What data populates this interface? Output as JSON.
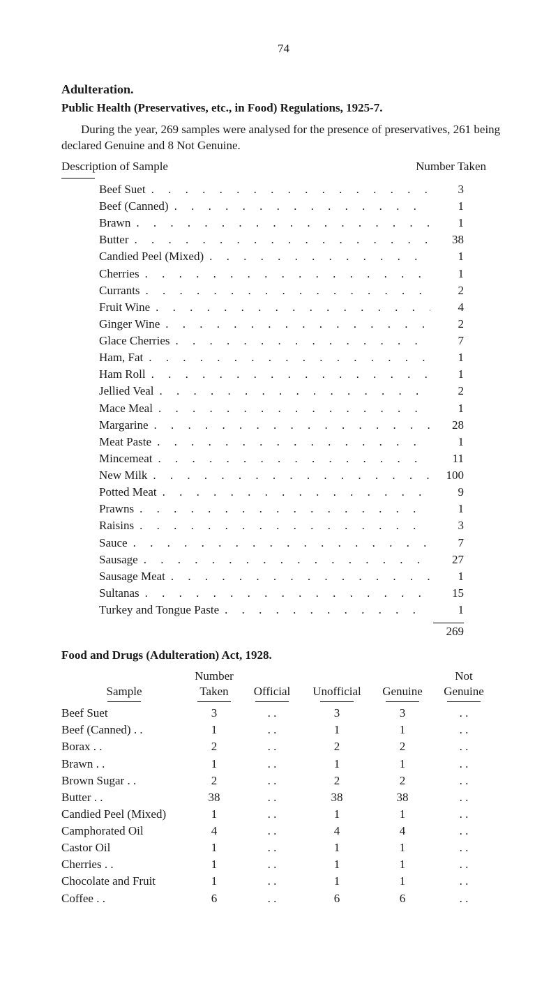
{
  "page_number": "74",
  "adulteration_heading": "Adulteration.",
  "subheading1": "Public Health (Preservatives, etc., in Food) Regulations, 1925-7.",
  "paragraph1": "During the year, 269 samples were analysed for the presence of preservatives, 261 being declared Genuine and 8 Not Genuine.",
  "desc_label": "Description of Sample",
  "desc_value_label": "Number Taken",
  "items": [
    {
      "label": "Beef Suet",
      "value": "3"
    },
    {
      "label": "Beef (Canned)",
      "value": "1"
    },
    {
      "label": "Brawn",
      "value": "1"
    },
    {
      "label": "Butter",
      "value": "38"
    },
    {
      "label": "Candied Peel (Mixed)",
      "value": "1"
    },
    {
      "label": "Cherries",
      "value": "1"
    },
    {
      "label": "Currants",
      "value": "2"
    },
    {
      "label": "Fruit Wine",
      "value": "4"
    },
    {
      "label": "Ginger Wine",
      "value": "2"
    },
    {
      "label": "Glace Cherries",
      "value": "7"
    },
    {
      "label": "Ham, Fat",
      "value": "1"
    },
    {
      "label": "Ham Roll",
      "value": "1"
    },
    {
      "label": "Jellied Veal",
      "value": "2"
    },
    {
      "label": "Mace Meal",
      "value": "1"
    },
    {
      "label": "Margarine",
      "value": "28"
    },
    {
      "label": "Meat Paste",
      "value": "1"
    },
    {
      "label": "Mincemeat",
      "value": "11"
    },
    {
      "label": "New Milk",
      "value": "100"
    },
    {
      "label": "Potted Meat",
      "value": "9"
    },
    {
      "label": "Prawns",
      "value": "1"
    },
    {
      "label": "Raisins",
      "value": "3"
    },
    {
      "label": "Sauce",
      "value": "7"
    },
    {
      "label": "Sausage",
      "value": "27"
    },
    {
      "label": "Sausage Meat",
      "value": "1"
    },
    {
      "label": "Sultanas",
      "value": "15"
    },
    {
      "label": "Turkey and Tongue Paste",
      "value": "1"
    }
  ],
  "total": "269",
  "subheading2": "Food and Drugs (Adulteration) Act, 1928.",
  "t2_headers": {
    "sample": "Sample",
    "number": "Number",
    "taken": "Taken",
    "official": "Official",
    "unofficial": "Unofficial",
    "genuine": "Genuine",
    "not": "Not",
    "not_genuine": "Genuine"
  },
  "t2_rows": [
    {
      "sample": "Beef Suet",
      "taken": "3",
      "official": ". .",
      "unofficial": "3",
      "genuine": "3",
      "notgen": ". ."
    },
    {
      "sample": "Beef (Canned) . .",
      "taken": "1",
      "official": ". .",
      "unofficial": "1",
      "genuine": "1",
      "notgen": ". ."
    },
    {
      "sample": "Borax   . .",
      "taken": "2",
      "official": ". .",
      "unofficial": "2",
      "genuine": "2",
      "notgen": ". ."
    },
    {
      "sample": "Brawn  . .",
      "taken": "1",
      "official": ". .",
      "unofficial": "1",
      "genuine": "1",
      "notgen": ". ."
    },
    {
      "sample": "Brown Sugar  . .",
      "taken": "2",
      "official": ". .",
      "unofficial": "2",
      "genuine": "2",
      "notgen": ". ."
    },
    {
      "sample": "Butter  . .",
      "taken": "38",
      "official": ". .",
      "unofficial": "38",
      "genuine": "38",
      "notgen": ". ."
    },
    {
      "sample": "Candied Peel (Mixed)",
      "taken": "1",
      "official": ". .",
      "unofficial": "1",
      "genuine": "1",
      "notgen": ". ."
    },
    {
      "sample": "Camphorated Oil",
      "taken": "4",
      "official": ". .",
      "unofficial": "4",
      "genuine": "4",
      "notgen": ". ."
    },
    {
      "sample": "Castor Oil",
      "taken": "1",
      "official": ". .",
      "unofficial": "1",
      "genuine": "1",
      "notgen": ". ."
    },
    {
      "sample": "Cherries . .",
      "taken": "1",
      "official": ". .",
      "unofficial": "1",
      "genuine": "1",
      "notgen": ". ."
    },
    {
      "sample": "Chocolate and Fruit",
      "taken": "1",
      "official": ". .",
      "unofficial": "1",
      "genuine": "1",
      "notgen": ". ."
    },
    {
      "sample": "Coffee   . .",
      "taken": "6",
      "official": ". .",
      "unofficial": "6",
      "genuine": "6",
      "notgen": ". ."
    }
  ]
}
